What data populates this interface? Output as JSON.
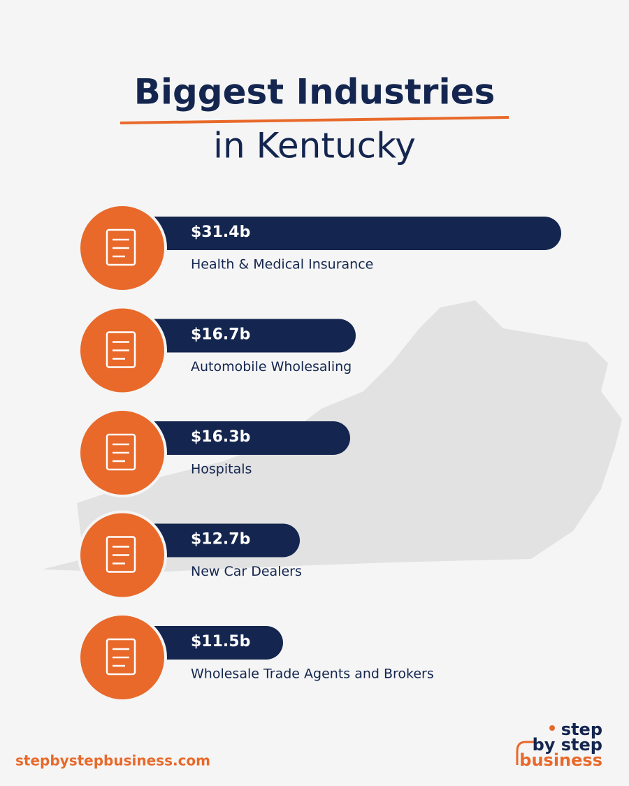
{
  "chart_data": {
    "type": "bar",
    "title": [
      "Biggest Industries",
      "in Kentucky"
    ],
    "categories": [
      "Health & Medical Insurance",
      "Automobile Wholesaling",
      "Hospitals",
      "New Car Dealers",
      "Wholesale Trade Agents and Brokers"
    ],
    "values": [
      31.4,
      16.7,
      16.3,
      12.7,
      11.5
    ],
    "value_labels": [
      "$31.4b",
      "$16.7b",
      "$16.3b",
      "$12.7b",
      "$11.5b"
    ],
    "color": "#14264f",
    "icon_color": "#e8692a",
    "footer": {
      "url": "stepbystepbusiness.com",
      "logo": [
        "step",
        "by step",
        "business"
      ]
    }
  }
}
